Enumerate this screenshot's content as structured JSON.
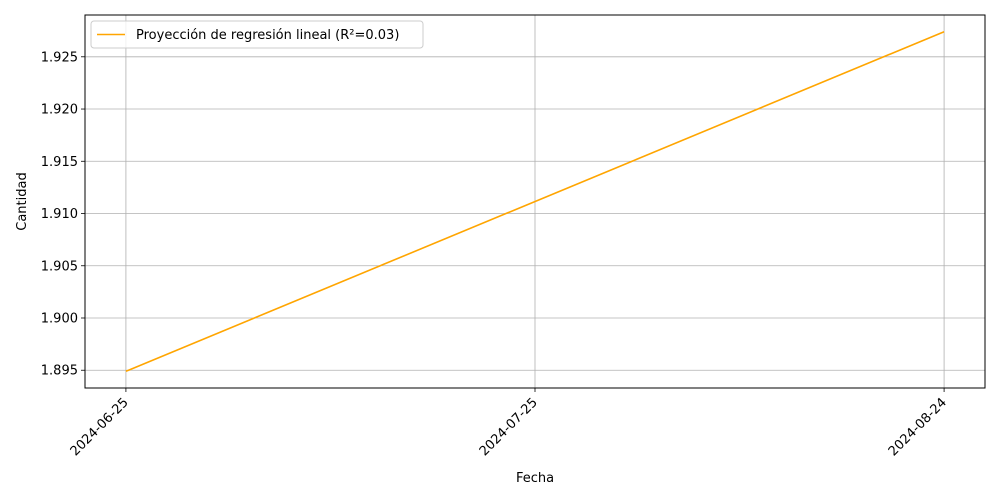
{
  "chart_data": {
    "type": "line",
    "title": "",
    "xlabel": "Fecha",
    "ylabel": "Cantidad",
    "x_ticks": [
      "2024-06-25",
      "2024-07-25",
      "2024-08-24"
    ],
    "y_ticks": [
      "1.895",
      "1.900",
      "1.905",
      "1.910",
      "1.915",
      "1.920",
      "1.925"
    ],
    "ylim": [
      1.8933,
      1.929
    ],
    "xlim": [
      "2024-06-22",
      "2024-08-27"
    ],
    "grid": true,
    "legend_position": "top-left",
    "series": [
      {
        "name": "Proyección de regresión lineal (R²=0.03)",
        "color": "#FFA500",
        "x": [
          "2024-06-25",
          "2024-08-24"
        ],
        "y": [
          1.8949,
          1.9274
        ]
      }
    ]
  }
}
